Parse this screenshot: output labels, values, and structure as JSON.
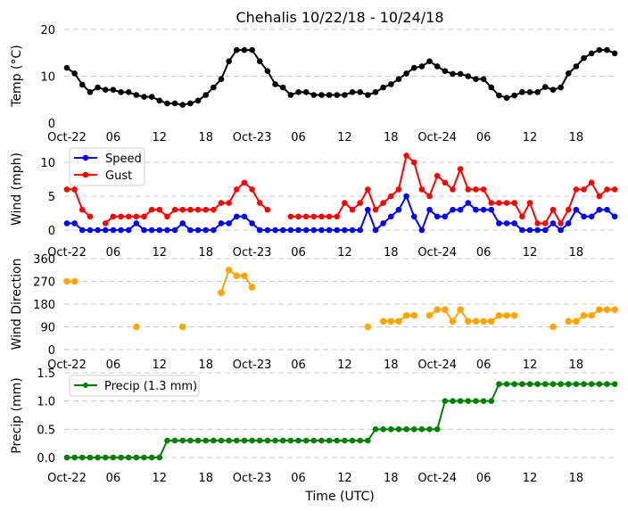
{
  "chart_data": [
    {
      "type": "line",
      "title": "Chehalis 10/22/18 - 10/24/18",
      "ylabel": "Temp (°C)",
      "ylim": [
        0,
        20
      ],
      "yticks": [
        "0",
        "10",
        "20"
      ],
      "grid": true,
      "x_hours": "0..71 hourly from Oct-22 00:00 UTC",
      "series": [
        {
          "name": "Temp",
          "color": "#000000",
          "values": [
            11.8,
            10.6,
            8.2,
            6.6,
            7.6,
            7.1,
            7.1,
            6.6,
            6.6,
            6.0,
            5.6,
            5.6,
            4.8,
            4.2,
            4.2,
            3.9,
            4.2,
            4.8,
            6.0,
            7.6,
            9.4,
            13.2,
            15.6,
            15.6,
            15.6,
            13.2,
            11.1,
            8.3,
            7.6,
            6.0,
            6.6,
            6.6,
            6.0,
            6.0,
            6.0,
            6.0,
            6.0,
            6.6,
            6.6,
            6.0,
            6.6,
            7.6,
            8.3,
            9.4,
            10.6,
            11.8,
            12.1,
            13.2,
            12.1,
            11.1,
            10.5,
            10.5,
            10.0,
            9.4,
            9.4,
            7.6,
            5.9,
            5.4,
            5.9,
            6.6,
            6.6,
            6.6,
            7.7,
            7.1,
            7.6,
            10.6,
            12.1,
            13.9,
            14.9,
            15.6,
            15.6,
            14.9
          ]
        }
      ]
    },
    {
      "type": "line",
      "ylabel": "Wind (mph)",
      "ylim": [
        0,
        10
      ],
      "yticks": [
        "0",
        "5",
        "10"
      ],
      "grid": true,
      "legend": "top-left",
      "series": [
        {
          "name": "Speed",
          "color": "#0000ff",
          "values": [
            1,
            1,
            0,
            0,
            0,
            0,
            0,
            0,
            0,
            1,
            0,
            0,
            0,
            0,
            0,
            1,
            0,
            0,
            0,
            0,
            1,
            1,
            2,
            2,
            1,
            0,
            0,
            0,
            0,
            0,
            0,
            0,
            0,
            0,
            0,
            0,
            0,
            0,
            0,
            3,
            0,
            1,
            2,
            3,
            5,
            2,
            0,
            3,
            2,
            2,
            3,
            3,
            4,
            3,
            3,
            3,
            1,
            1,
            1,
            0,
            0,
            0,
            0,
            1,
            0,
            1,
            3,
            2,
            2,
            3,
            3,
            2
          ]
        },
        {
          "name": "Gust",
          "color": "#ff0000",
          "values": [
            6,
            6,
            3,
            2,
            null,
            1,
            2,
            2,
            2,
            2,
            2,
            3,
            3,
            2,
            3,
            3,
            3,
            3,
            3,
            3,
            4,
            4,
            6,
            7,
            6,
            4,
            3,
            null,
            null,
            2,
            2,
            2,
            2,
            2,
            2,
            2,
            4,
            3,
            4,
            6,
            3,
            4,
            5,
            6,
            11,
            10,
            6,
            5,
            8,
            7,
            6,
            9,
            6,
            6,
            6,
            4,
            4,
            4,
            4,
            2,
            4,
            1,
            1,
            3,
            1,
            3,
            6,
            6,
            7,
            5,
            6,
            6
          ]
        }
      ]
    },
    {
      "type": "scatter",
      "ylabel": "Wind Direction",
      "ylim": [
        0,
        360
      ],
      "yticks": [
        "0",
        "90",
        "180",
        "270",
        "360"
      ],
      "grid": true,
      "series": [
        {
          "name": "Direction",
          "color": "#ffa500",
          "values": [
            270,
            270,
            null,
            null,
            null,
            null,
            null,
            null,
            null,
            90,
            null,
            null,
            null,
            null,
            null,
            90,
            null,
            null,
            null,
            null,
            225,
            315,
            292,
            292,
            247,
            null,
            null,
            null,
            null,
            null,
            null,
            null,
            null,
            null,
            null,
            null,
            null,
            null,
            null,
            90,
            null,
            112,
            112,
            112,
            135,
            135,
            null,
            135,
            158,
            158,
            112,
            158,
            112,
            112,
            112,
            112,
            135,
            135,
            135,
            null,
            null,
            null,
            null,
            90,
            null,
            112,
            112,
            135,
            135,
            158,
            158,
            158
          ]
        }
      ]
    },
    {
      "type": "line",
      "ylabel": "Precip (mm)",
      "xlabel": "Time (UTC)",
      "ylim": [
        0,
        1.5
      ],
      "yticks": [
        "0.0",
        "0.5",
        "1.0",
        "1.5"
      ],
      "grid": true,
      "legend": "top-left",
      "series": [
        {
          "name": "Precip (1.3 mm)",
          "color": "#008000",
          "values": [
            0,
            0,
            0,
            0,
            0,
            0,
            0,
            0,
            0,
            0,
            0,
            0,
            0,
            0.3,
            0.3,
            0.3,
            0.3,
            0.3,
            0.3,
            0.3,
            0.3,
            0.3,
            0.3,
            0.3,
            0.3,
            0.3,
            0.3,
            0.3,
            0.3,
            0.3,
            0.3,
            0.3,
            0.3,
            0.3,
            0.3,
            0.3,
            0.3,
            0.3,
            0.3,
            0.3,
            0.5,
            0.5,
            0.5,
            0.5,
            0.5,
            0.5,
            0.5,
            0.5,
            0.5,
            1.0,
            1.0,
            1.0,
            1.0,
            1.0,
            1.0,
            1.0,
            1.3,
            1.3,
            1.3,
            1.3,
            1.3,
            1.3,
            1.3,
            1.3,
            1.3,
            1.3,
            1.3,
            1.3,
            1.3,
            1.3,
            1.3,
            1.3
          ]
        }
      ]
    }
  ],
  "xticks": {
    "hours": [
      0,
      6,
      12,
      18,
      24,
      30,
      36,
      42,
      48,
      54,
      60,
      66
    ],
    "labels": [
      "Oct-22",
      "06",
      "12",
      "18",
      "Oct-23",
      "06",
      "12",
      "18",
      "Oct-24",
      "06",
      "12",
      "18"
    ]
  }
}
